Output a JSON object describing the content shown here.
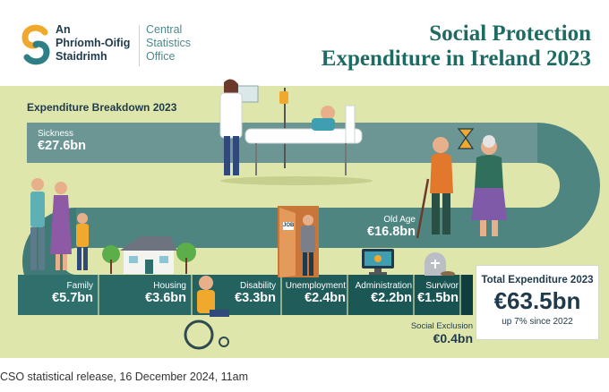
{
  "header": {
    "logo_ga": [
      "An",
      "Phríomh-Oifig",
      "Staidrimh"
    ],
    "logo_en": [
      "Central",
      "Statistics",
      "Office"
    ],
    "title_line1": "Social Protection",
    "title_line2": "Expenditure in Ireland 2023"
  },
  "breakdown_title": "Expenditure Breakdown 2023",
  "segments": {
    "sickness": {
      "label": "Sickness",
      "value": "€27.6bn"
    },
    "old_age": {
      "label": "Old Age",
      "value": "€16.8bn"
    },
    "family": {
      "label": "Family",
      "value": "€5.7bn"
    },
    "housing": {
      "label": "Housing",
      "value": "€3.6bn"
    },
    "disability": {
      "label": "Disability",
      "value": "€3.3bn"
    },
    "unemployment": {
      "label": "Unemployment",
      "value": "€2.4bn"
    },
    "administration": {
      "label": "Administration",
      "value": "€2.2bn"
    },
    "survivor": {
      "label": "Survivor",
      "value": "€1.5bn"
    },
    "social_exclusion": {
      "label": "Social Exclusion",
      "value": "€0.4bn"
    }
  },
  "total": {
    "heading": "Total Expenditure 2023",
    "value": "€63.5bn",
    "change": "up 7% since 2022"
  },
  "door_sign": "JOB",
  "caption": "CSO statistical release, 16 December 2024, 11am",
  "colors": {
    "panel": "#dfe6ac",
    "teal_light": "#5f8f8c",
    "teal_mid": "#2e6f6d",
    "teal_dark": "#17504f",
    "title": "#1d6b62",
    "navy": "#1f3a4b"
  }
}
